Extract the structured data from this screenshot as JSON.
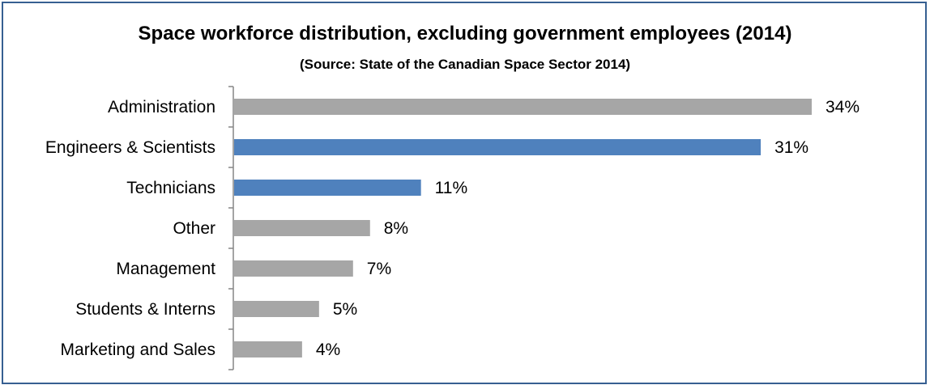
{
  "colors": {
    "frame_border": "#365f91",
    "bar_gray": "#a6a6a6",
    "bar_blue": "#4f81bd",
    "axis": "#868686"
  },
  "chart_data": {
    "type": "bar",
    "orientation": "horizontal",
    "title": "Space workforce distribution, excluding government employees (2014)",
    "subtitle": "(Source: State of the Canadian Space Sector 2014)",
    "categories": [
      "Administration",
      "Engineers & Scientists",
      "Technicians",
      "Other",
      "Management",
      "Students & Interns",
      "Marketing and Sales"
    ],
    "values": [
      34,
      31,
      11,
      8,
      7,
      5,
      4
    ],
    "value_labels": [
      "34%",
      "31%",
      "11%",
      "8%",
      "7%",
      "5%",
      "4%"
    ],
    "bar_colors": [
      "#a6a6a6",
      "#4f81bd",
      "#4f81bd",
      "#a6a6a6",
      "#a6a6a6",
      "#a6a6a6",
      "#a6a6a6"
    ],
    "unit": "%",
    "xlim": [
      0,
      34
    ],
    "grid": false,
    "legend": "none"
  }
}
